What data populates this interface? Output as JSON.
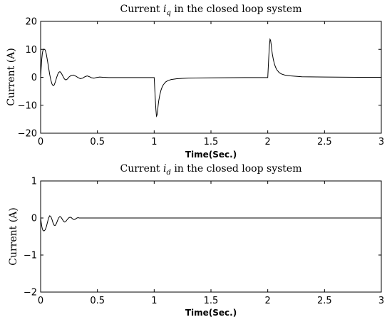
{
  "chart_data": [
    {
      "type": "line",
      "title_prefix": "Current ",
      "title_var": "i",
      "title_sub": "q",
      "title_suffix": " in the closed loop system",
      "xlabel": "Time(Sec.)",
      "ylabel": "Current (A)",
      "xlim": [
        0,
        3
      ],
      "ylim": [
        -20,
        20
      ],
      "xticks": [
        0,
        0.5,
        1,
        1.5,
        2,
        2.5,
        3
      ],
      "yticks": [
        -20,
        -10,
        0,
        10,
        20
      ],
      "xtick_labels": [
        "0",
        "0.5",
        "1",
        "1.5",
        "2",
        "2.5",
        "3"
      ],
      "ytick_labels": [
        "−20",
        "−10",
        "0",
        "10",
        "20"
      ],
      "series": [
        {
          "x": [
            0,
            0.005,
            0.01,
            0.015,
            0.02,
            0.03,
            0.04,
            0.05,
            0.06,
            0.07,
            0.08,
            0.09,
            0.1,
            0.11,
            0.12,
            0.13,
            0.14,
            0.15,
            0.16,
            0.17,
            0.18,
            0.19,
            0.2,
            0.21,
            0.22,
            0.23,
            0.24,
            0.25,
            0.27,
            0.29,
            0.31,
            0.33,
            0.35,
            0.37,
            0.39,
            0.41,
            0.43,
            0.45,
            0.47,
            0.49,
            0.52,
            0.55,
            0.6,
            0.7,
            0.8,
            0.9,
            1.0,
            1.005,
            1.01,
            1.015,
            1.02,
            1.025,
            1.03,
            1.035,
            1.04,
            1.05,
            1.06,
            1.07,
            1.08,
            1.1,
            1.12,
            1.15,
            1.2,
            1.3,
            1.5,
            1.8,
            2.0,
            2.005,
            2.01,
            2.015,
            2.02,
            2.025,
            2.03,
            2.035,
            2.04,
            2.05,
            2.06,
            2.07,
            2.08,
            2.1,
            2.12,
            2.15,
            2.2,
            2.3,
            2.5,
            2.8,
            3.0
          ],
          "y": [
            0,
            3.5,
            6.5,
            8.5,
            9.6,
            10.1,
            9.8,
            8.3,
            6.0,
            3.5,
            1.0,
            -1.0,
            -2.4,
            -3.0,
            -2.7,
            -1.6,
            -0.2,
            1.0,
            1.8,
            2.0,
            1.6,
            0.9,
            0.1,
            -0.6,
            -0.9,
            -0.8,
            -0.4,
            0.1,
            0.7,
            0.8,
            0.4,
            -0.1,
            -0.5,
            -0.3,
            0.2,
            0.5,
            0.2,
            -0.2,
            -0.3,
            -0.1,
            0.1,
            0,
            -0.1,
            -0.1,
            -0.1,
            -0.1,
            -0.1,
            -4,
            -8,
            -11.5,
            -13.9,
            -13.5,
            -12,
            -10,
            -8.4,
            -6.2,
            -4.6,
            -3.5,
            -2.7,
            -1.7,
            -1.2,
            -0.8,
            -0.5,
            -0.3,
            -0.2,
            -0.1,
            -0.1,
            4,
            8,
            11.5,
            13.6,
            13.2,
            11.8,
            10,
            8.4,
            6.2,
            4.6,
            3.5,
            2.7,
            1.7,
            1.2,
            0.8,
            0.5,
            0.2,
            0.1,
            0,
            0
          ]
        }
      ]
    },
    {
      "type": "line",
      "title_prefix": "Current ",
      "title_var": "i",
      "title_sub": "d",
      "title_suffix": " in the closed loop system",
      "xlabel": "Time(Sec.)",
      "ylabel": "Current (A)",
      "xlim": [
        0,
        3
      ],
      "ylim": [
        -2,
        1
      ],
      "xticks": [
        0,
        0.5,
        1,
        1.5,
        2,
        2.5,
        3
      ],
      "yticks": [
        -2,
        -1,
        0,
        1
      ],
      "xtick_labels": [
        "0",
        "0.5",
        "1",
        "1.5",
        "2",
        "2.5",
        "3"
      ],
      "ytick_labels": [
        "−2",
        "−1",
        "0",
        "1"
      ],
      "series": [
        {
          "x": [
            0,
            0.005,
            0.01,
            0.015,
            0.02,
            0.03,
            0.04,
            0.05,
            0.06,
            0.07,
            0.08,
            0.09,
            0.1,
            0.11,
            0.12,
            0.13,
            0.14,
            0.15,
            0.16,
            0.17,
            0.18,
            0.19,
            0.2,
            0.21,
            0.22,
            0.23,
            0.24,
            0.25,
            0.26,
            0.27,
            0.28,
            0.29,
            0.3,
            0.31,
            0.32,
            0.33,
            0.34,
            0.35,
            0.4,
            0.5,
            0.8,
            1.0,
            1.5,
            2.0,
            2.5,
            3.0
          ],
          "y": [
            0,
            -0.12,
            -0.22,
            -0.29,
            -0.33,
            -0.35,
            -0.32,
            -0.24,
            -0.12,
            0,
            0.06,
            0.04,
            -0.04,
            -0.14,
            -0.2,
            -0.2,
            -0.14,
            -0.06,
            0.01,
            0.04,
            0.02,
            -0.03,
            -0.08,
            -0.11,
            -0.1,
            -0.06,
            -0.02,
            0.01,
            0.02,
            0.01,
            -0.02,
            -0.04,
            -0.04,
            -0.02,
            0,
            0.01,
            0,
            0,
            0,
            0,
            0,
            0,
            0,
            0,
            0,
            0
          ]
        }
      ]
    }
  ]
}
